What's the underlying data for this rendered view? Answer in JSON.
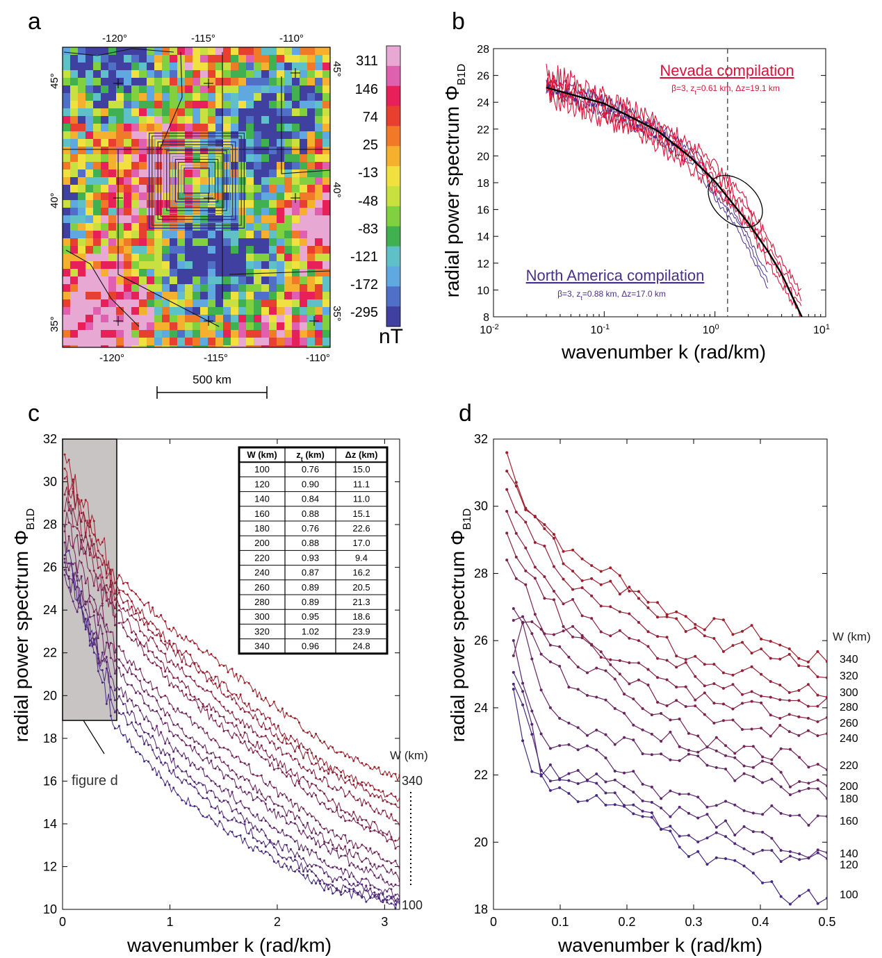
{
  "panels": {
    "a": {
      "letter": "a",
      "lon_top": [
        "-120°",
        "-115°",
        "-110°"
      ],
      "lon_bottom": [
        "-120°",
        "-115°",
        "-110°"
      ],
      "lat_left": [
        "45°",
        "40°",
        "35°"
      ],
      "lat_right": [
        "45°",
        "40°",
        "35°"
      ],
      "colorbar_labels": [
        "311",
        "146",
        "74",
        "25",
        "-13",
        "-48",
        "-83",
        "-121",
        "-172",
        "-295"
      ],
      "colorbar_unit": "nT",
      "colorbar_colors": [
        "#e8a8d4",
        "#e060b0",
        "#e8205a",
        "#e84030",
        "#f07a28",
        "#f5b030",
        "#f0e040",
        "#c8e040",
        "#80d040",
        "#40b050",
        "#60c0c8",
        "#60a8e0",
        "#5070c8",
        "#4040a0"
      ],
      "scale_label": "500 km"
    },
    "b": {
      "letter": "b",
      "nevada_label": "Nevada compilation",
      "nevada_params": "β=3, z_t=0.61 km, Δz=19.1 km",
      "na_label": "North America compilation",
      "na_params": "β=3, z_t=0.88 km, Δz=17.0 km",
      "nevada_color": "#d8143a",
      "na_color": "#4a2f8c"
    },
    "c": {
      "letter": "c",
      "w_label": "W (km)",
      "top_w": "340",
      "bottom_w": "100",
      "inset_label": "figure d",
      "table": {
        "headers": [
          "W (km)",
          "z_t (km)",
          "Δz (km)"
        ],
        "rows": [
          [
            "100",
            "0.76",
            "15.0"
          ],
          [
            "120",
            "0.90",
            "11.1"
          ],
          [
            "140",
            "0.84",
            "11.0"
          ],
          [
            "160",
            "0.88",
            "15.1"
          ],
          [
            "180",
            "0.76",
            "22.6"
          ],
          [
            "200",
            "0.88",
            "17.0"
          ],
          [
            "220",
            "0.93",
            "9.4"
          ],
          [
            "240",
            "0.87",
            "16.2"
          ],
          [
            "260",
            "0.89",
            "20.5"
          ],
          [
            "280",
            "0.89",
            "21.3"
          ],
          [
            "300",
            "0.95",
            "18.6"
          ],
          [
            "320",
            "1.02",
            "23.9"
          ],
          [
            "340",
            "0.96",
            "24.8"
          ]
        ]
      }
    },
    "d": {
      "letter": "d",
      "w_label": "W (km)",
      "series_labels": [
        "340",
        "320",
        "300",
        "280",
        "260",
        "240",
        "220",
        "200",
        "180",
        "160",
        "140",
        "120",
        "100"
      ]
    }
  },
  "chart_data": [
    {
      "type": "line",
      "panel": "b",
      "xlabel": "wavenumber k (rad/km)",
      "ylabel": "radial power spectrum Φ_B1D",
      "xscale": "log",
      "xlim": [
        0.01,
        10
      ],
      "ylim": [
        8,
        28
      ],
      "xticks": [
        "10^-2",
        "10^-1",
        "10^0",
        "10^1"
      ],
      "yticks": [
        8,
        10,
        12,
        14,
        16,
        18,
        20,
        22,
        24,
        26,
        28
      ],
      "vline_x": 1.3,
      "series": [
        {
          "name": "Nevada compilation",
          "x": [
            0.03,
            0.05,
            0.1,
            0.2,
            0.4,
            0.7,
            1.0,
            1.5,
            2.0,
            3.0,
            4.0,
            6.0
          ],
          "y": [
            25.3,
            24.7,
            23.6,
            22.5,
            21.0,
            19.6,
            18.4,
            16.9,
            15.5,
            13.0,
            11.3,
            9.0
          ]
        },
        {
          "name": "North America compilation",
          "x": [
            0.03,
            0.05,
            0.1,
            0.2,
            0.4,
            0.7,
            1.0,
            1.5,
            2.0,
            2.5,
            3.0
          ],
          "y": [
            25.1,
            24.6,
            23.8,
            22.6,
            21.1,
            19.6,
            17.2,
            15.4,
            13.6,
            11.8,
            10.7
          ]
        },
        {
          "x": [
            0.03,
            0.1,
            0.3,
            0.6,
            1.0,
            2.0,
            3.0,
            4.0,
            6.0
          ],
          "y": [
            25.1,
            23.9,
            21.9,
            19.9,
            18.1,
            15.0,
            12.9,
            11.2,
            8.1
          ]
        }
      ]
    },
    {
      "type": "line",
      "panel": "c",
      "xlabel": "wavenumber k (rad/km)",
      "ylabel": "radial power spectrum Φ_B1D",
      "xlim": [
        0,
        3.14
      ],
      "ylim": [
        10,
        32
      ],
      "xticks": [
        0,
        1,
        2,
        3
      ],
      "yticks": [
        10,
        12,
        14,
        16,
        18,
        20,
        22,
        24,
        26,
        28,
        30,
        32
      ],
      "shaded_box": {
        "x": [
          0,
          0.5
        ],
        "y": [
          18,
          32
        ]
      },
      "series": [
        {
          "name": "340",
          "x": [
            0.02,
            0.5,
            1,
            1.5,
            2,
            2.5,
            3.14
          ],
          "y": [
            31.0,
            25.6,
            23.2,
            21.4,
            19.4,
            17.6,
            16.1
          ]
        },
        {
          "name": "320",
          "x": [
            0.02,
            0.5,
            1,
            1.5,
            2,
            2.5,
            3.14
          ],
          "y": [
            30.5,
            25.1,
            22.5,
            20.5,
            18.5,
            16.6,
            15.1
          ]
        },
        {
          "name": "300",
          "x": [
            0.02,
            0.5,
            1,
            1.5,
            2,
            2.5,
            3.14
          ],
          "y": [
            30.2,
            24.8,
            22.2,
            20.2,
            18.1,
            16.4,
            14.8
          ]
        },
        {
          "name": "280",
          "x": [
            0.02,
            0.5,
            1,
            1.5,
            2,
            2.5,
            3.14
          ],
          "y": [
            29.6,
            24.4,
            21.6,
            19.5,
            17.5,
            15.8,
            14.1
          ]
        },
        {
          "name": "260",
          "x": [
            0.02,
            0.5,
            1,
            1.5,
            2,
            2.5,
            3.14
          ],
          "y": [
            29.0,
            24.0,
            21.0,
            18.9,
            16.9,
            15.1,
            13.2
          ]
        },
        {
          "name": "240",
          "x": [
            0.02,
            0.5,
            1,
            1.5,
            2,
            2.5,
            3.14
          ],
          "y": [
            28.2,
            23.6,
            20.6,
            18.5,
            16.6,
            14.7,
            12.9
          ]
        },
        {
          "name": "220",
          "x": [
            0.02,
            0.5,
            1,
            1.5,
            2,
            2.5,
            3.14
          ],
          "y": [
            27.4,
            22.3,
            19.6,
            17.6,
            15.5,
            13.6,
            12.0
          ]
        },
        {
          "name": "200",
          "x": [
            0.02,
            0.5,
            1,
            1.5,
            2,
            2.5,
            3.14
          ],
          "y": [
            26.8,
            21.9,
            18.9,
            16.8,
            14.9,
            13.1,
            11.5
          ]
        },
        {
          "name": "180",
          "x": [
            0.02,
            0.5,
            1,
            1.5,
            2,
            2.5,
            3.14
          ],
          "y": [
            26.2,
            21.3,
            18.4,
            16.3,
            14.4,
            12.7,
            11.0
          ]
        },
        {
          "name": "160",
          "x": [
            0.02,
            0.5,
            1,
            1.5,
            2,
            2.5,
            3.14
          ],
          "y": [
            25.6,
            20.5,
            17.7,
            15.6,
            13.7,
            12.0,
            10.6
          ]
        },
        {
          "name": "140",
          "x": [
            0.02,
            0.5,
            1,
            1.5,
            2,
            2.5,
            3.14
          ],
          "y": [
            26.0,
            20.0,
            17.0,
            15.0,
            13.1,
            11.5,
            10.4
          ]
        },
        {
          "name": "120",
          "x": [
            0.02,
            0.5,
            1,
            1.5,
            2,
            2.5,
            3.14
          ],
          "y": [
            26.5,
            19.4,
            16.5,
            14.5,
            12.7,
            11.1,
            10.3
          ]
        },
        {
          "name": "100",
          "x": [
            0.02,
            0.5,
            1,
            1.5,
            2,
            2.5,
            3.14
          ],
          "y": [
            27.0,
            18.6,
            15.7,
            13.8,
            12.2,
            10.9,
            10.2
          ]
        }
      ]
    },
    {
      "type": "line",
      "panel": "d",
      "xlabel": "wavenumber k (rad/km)",
      "ylabel": "radial power spectrum Φ_B1D",
      "xlim": [
        0,
        0.5
      ],
      "ylim": [
        18,
        32
      ],
      "xticks": [
        0,
        0.1,
        0.2,
        0.3,
        0.4,
        0.5
      ],
      "yticks": [
        18,
        20,
        22,
        24,
        26,
        28,
        30,
        32
      ],
      "series": [
        {
          "name": "340",
          "x": [
            0.02,
            0.04,
            0.08,
            0.12,
            0.18,
            0.25,
            0.32,
            0.4,
            0.45,
            0.5
          ],
          "y": [
            31.6,
            30.3,
            29.4,
            28.5,
            28.0,
            27.0,
            26.5,
            26.2,
            25.6,
            25.4
          ]
        },
        {
          "name": "320",
          "x": [
            0.02,
            0.04,
            0.08,
            0.12,
            0.18,
            0.25,
            0.32,
            0.4,
            0.45,
            0.5
          ],
          "y": [
            31.0,
            30.2,
            29.2,
            28.0,
            27.7,
            26.8,
            26.0,
            25.6,
            25.4,
            25.0
          ]
        },
        {
          "name": "300",
          "x": [
            0.02,
            0.04,
            0.08,
            0.12,
            0.18,
            0.25,
            0.32,
            0.4,
            0.45,
            0.5
          ],
          "y": [
            30.4,
            29.8,
            28.6,
            27.6,
            27.0,
            26.0,
            25.3,
            25.0,
            24.6,
            24.5
          ]
        },
        {
          "name": "280",
          "x": [
            0.02,
            0.04,
            0.08,
            0.12,
            0.18,
            0.25,
            0.32,
            0.4,
            0.45,
            0.5
          ],
          "y": [
            29.7,
            29.0,
            27.6,
            27.0,
            26.2,
            25.6,
            24.8,
            24.5,
            24.3,
            24.1
          ]
        },
        {
          "name": "260",
          "x": [
            0.02,
            0.04,
            0.08,
            0.12,
            0.18,
            0.25,
            0.32,
            0.4,
            0.45,
            0.5
          ],
          "y": [
            29.0,
            28.1,
            27.4,
            26.0,
            25.6,
            24.8,
            24.3,
            24.0,
            23.8,
            23.6
          ]
        },
        {
          "name": "240",
          "x": [
            0.02,
            0.04,
            0.08,
            0.12,
            0.18,
            0.25,
            0.32,
            0.4,
            0.45,
            0.5
          ],
          "y": [
            28.6,
            27.8,
            26.2,
            26.5,
            25.0,
            24.3,
            23.8,
            23.4,
            23.2,
            23.2
          ]
        },
        {
          "name": "220",
          "x": [
            0.03,
            0.05,
            0.08,
            0.12,
            0.18,
            0.25,
            0.32,
            0.4,
            0.45,
            0.5
          ],
          "y": [
            25.7,
            27.0,
            26.0,
            25.5,
            24.8,
            23.8,
            23.0,
            22.7,
            22.6,
            22.2
          ]
        },
        {
          "name": "200",
          "x": [
            0.03,
            0.05,
            0.08,
            0.12,
            0.18,
            0.25,
            0.32,
            0.4,
            0.45,
            0.5
          ],
          "y": [
            26.7,
            26.6,
            25.5,
            24.5,
            24.0,
            23.2,
            22.7,
            22.3,
            21.8,
            21.8
          ]
        },
        {
          "name": "180",
          "x": [
            0.03,
            0.05,
            0.08,
            0.12,
            0.18,
            0.25,
            0.32,
            0.4,
            0.45,
            0.5
          ],
          "y": [
            27.0,
            26.0,
            24.0,
            23.5,
            23.0,
            22.6,
            22.3,
            21.8,
            21.5,
            21.5
          ]
        },
        {
          "name": "160",
          "x": [
            0.03,
            0.05,
            0.08,
            0.12,
            0.18,
            0.25,
            0.32,
            0.4,
            0.45,
            0.5
          ],
          "y": [
            26.0,
            24.3,
            22.6,
            23.0,
            22.3,
            21.5,
            21.2,
            21.0,
            20.8,
            20.6
          ]
        },
        {
          "name": "140",
          "x": [
            0.03,
            0.05,
            0.07,
            0.1,
            0.15,
            0.2,
            0.25,
            0.3,
            0.4,
            0.45,
            0.5
          ],
          "y": [
            25.0,
            24.2,
            22.1,
            22.1,
            21.9,
            21.5,
            21.0,
            20.8,
            20.2,
            19.6,
            19.6
          ]
        },
        {
          "name": "120",
          "x": [
            0.03,
            0.05,
            0.07,
            0.1,
            0.15,
            0.2,
            0.25,
            0.3,
            0.4,
            0.45,
            0.5
          ],
          "y": [
            24.6,
            23.6,
            22.1,
            21.9,
            21.6,
            21.2,
            20.6,
            20.2,
            19.8,
            19.4,
            19.5
          ]
        },
        {
          "name": "100",
          "x": [
            0.03,
            0.05,
            0.07,
            0.1,
            0.15,
            0.2,
            0.25,
            0.3,
            0.4,
            0.45,
            0.5
          ],
          "y": [
            24.4,
            22.6,
            21.8,
            21.5,
            21.2,
            21.0,
            20.4,
            19.6,
            19.0,
            18.3,
            18.4
          ]
        }
      ]
    }
  ]
}
